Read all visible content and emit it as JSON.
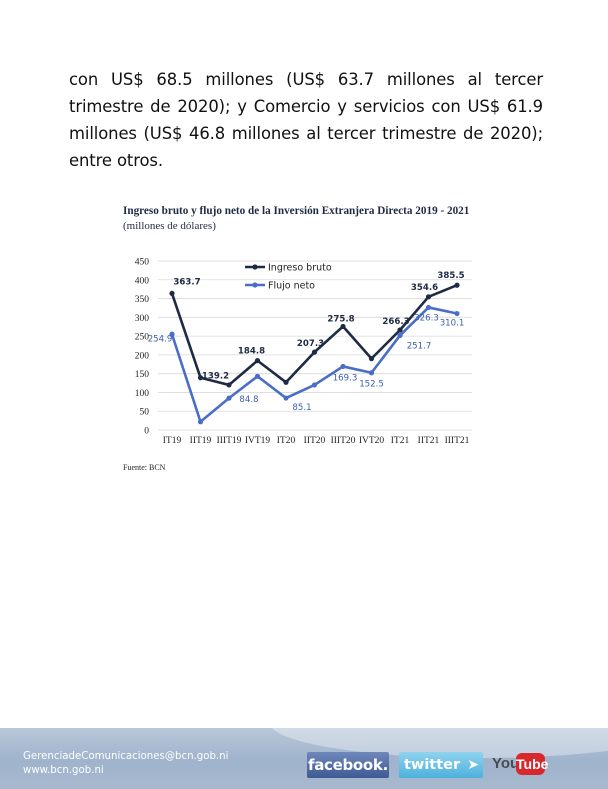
{
  "body": {
    "paragraph": "con US$ 68.5 millones (US$ 63.7 millones al tercer trimestre de 2020); y Comercio y servicios con US$ 61.9 millones (US$ 46.8 millones al tercer trimestre de 2020); entre otros."
  },
  "chart": {
    "title": "Ingreso bruto y flujo neto de la Inversión Extranjera Directa 2019 - 2021",
    "subtitle": "(millones de dólares)",
    "source": "Fuente: BCN"
  },
  "chart_data": {
    "type": "line",
    "title": "Ingreso bruto y flujo neto de la Inversión Extranjera Directa 2019 - 2021",
    "subtitle": "(millones de dólares)",
    "xlabel": "",
    "ylabel": "",
    "categories": [
      "IT19",
      "IIT19",
      "IIIT19",
      "IVT19",
      "IT20",
      "IIT20",
      "IIIT20",
      "IVT20",
      "IT21",
      "IIT21",
      "IIIT21"
    ],
    "yticks": [
      0,
      50,
      100,
      150,
      200,
      250,
      300,
      350,
      400,
      450
    ],
    "ylim": [
      0,
      450
    ],
    "grid": "horizontal",
    "legend": "top-left",
    "series": [
      {
        "name": "Ingreso bruto",
        "color": "#1f2a44",
        "values": [
          363.7,
          139.2,
          120,
          184.8,
          127,
          207.3,
          275.8,
          190,
          266.3,
          354.6,
          385.5
        ],
        "labels": [
          "363.7",
          "139.2",
          "",
          "184.8",
          "",
          "207.3",
          "275.8",
          "",
          "266.3",
          "354.6",
          "385.5"
        ]
      },
      {
        "name": "Flujo neto",
        "color": "#4a6ec7",
        "values": [
          254.9,
          22,
          84.8,
          143,
          85.1,
          120,
          169.3,
          152.5,
          251.7,
          326.3,
          310.1
        ],
        "labels": [
          "254.9",
          "",
          "84.8",
          "",
          "85.1",
          "",
          "169.3",
          "152.5",
          "251.7",
          "326.3",
          "310.1"
        ]
      }
    ]
  },
  "footer": {
    "email": "GerenciadeComunicaciones@bcn.gob.ni",
    "website": "www.bcn.gob.ni",
    "facebook_label": "facebook.",
    "twitter_label": "twitter",
    "youtube_you": "You",
    "youtube_tube": "Tube",
    "icons": {
      "facebook": "facebook-icon",
      "twitter": "twitter-icon",
      "twitter_bird": "twitter-bird-icon",
      "youtube": "youtube-icon"
    }
  }
}
